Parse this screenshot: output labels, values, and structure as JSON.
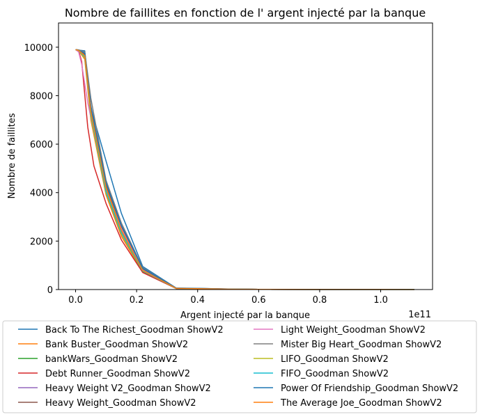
{
  "chart_data": {
    "type": "line",
    "title": "Nombre de faillites en fonction de l' argent injecté par la banque",
    "xlabel": "Argent injecté par la banque",
    "ylabel": "Nombre de faillites",
    "x_offset_label": "1e11",
    "xlim": [
      -0.056,
      1.17
    ],
    "ylim": [
      0,
      11000
    ],
    "x_ticks": [
      0.0,
      0.2,
      0.4,
      0.6,
      0.8,
      1.0
    ],
    "x_tick_labels": [
      "0.0",
      "0.2",
      "0.4",
      "0.6",
      "0.8",
      "1.0"
    ],
    "y_ticks": [
      0,
      2000,
      4000,
      6000,
      8000,
      10000
    ],
    "y_tick_labels": [
      "0",
      "2000",
      "4000",
      "6000",
      "8000",
      "10000"
    ],
    "grid": false,
    "legend_position": "below",
    "series": [
      {
        "name": "Back To The Richest_Goodman ShowV2",
        "color": "#1f77b4",
        "x": [
          0,
          0.01,
          0.03,
          0.05,
          0.1,
          0.15,
          0.22,
          0.33,
          0.4,
          0.5,
          0.6,
          0.8,
          1.0,
          1.11
        ],
        "y": [
          9900,
          9880,
          9850,
          7500,
          5300,
          3150,
          950,
          60,
          50,
          20,
          10,
          5,
          2,
          0
        ]
      },
      {
        "name": "Bank Buster_Goodman ShowV2",
        "color": "#ff7f0e",
        "x": [
          0,
          0.01,
          0.03,
          0.05,
          0.1,
          0.15,
          0.22,
          0.33,
          0.4,
          0.5,
          0.6,
          0.8,
          1.0,
          1.11
        ],
        "y": [
          9900,
          9850,
          9500,
          7000,
          3900,
          2200,
          720,
          40,
          30,
          15,
          8,
          4,
          2,
          0
        ]
      },
      {
        "name": "bankWars_Goodman ShowV2",
        "color": "#2ca02c",
        "x": [
          0,
          0.01,
          0.03,
          0.05,
          0.1,
          0.15,
          0.22,
          0.33,
          0.4,
          0.5,
          0.6,
          0.8,
          1.0,
          1.11
        ],
        "y": [
          9900,
          9860,
          9600,
          7200,
          4000,
          2300,
          750,
          45,
          35,
          15,
          8,
          4,
          2,
          0
        ]
      },
      {
        "name": "Debt Runner_Goodman ShowV2",
        "color": "#d62728",
        "x": [
          0,
          0.01,
          0.02,
          0.04,
          0.06,
          0.1,
          0.15,
          0.22,
          0.33,
          0.4,
          0.5,
          0.6,
          0.8,
          1.0,
          1.11
        ],
        "y": [
          9900,
          9850,
          9400,
          6700,
          5100,
          3550,
          2050,
          700,
          40,
          30,
          15,
          8,
          4,
          2,
          0
        ]
      },
      {
        "name": "Heavy Weight V2_Goodman ShowV2",
        "color": "#9467bd",
        "x": [
          0,
          0.01,
          0.03,
          0.05,
          0.1,
          0.15,
          0.22,
          0.33,
          0.4,
          0.5,
          0.6,
          0.8,
          1.0,
          1.11
        ],
        "y": [
          9900,
          9870,
          9650,
          7300,
          4100,
          2400,
          780,
          45,
          35,
          15,
          8,
          4,
          2,
          0
        ]
      },
      {
        "name": "Heavy Weight_Goodman ShowV2",
        "color": "#8c564b",
        "x": [
          0,
          0.01,
          0.03,
          0.05,
          0.1,
          0.15,
          0.22,
          0.33,
          0.4,
          0.5,
          0.6,
          0.8,
          1.0,
          1.11
        ],
        "y": [
          9900,
          9880,
          9700,
          7400,
          4300,
          2600,
          850,
          50,
          40,
          18,
          9,
          4,
          2,
          0
        ]
      },
      {
        "name": "Light Weight_Goodman ShowV2",
        "color": "#e377c2",
        "x": [
          0,
          0.01,
          0.02,
          0.04,
          0.1,
          0.15,
          0.22,
          0.33,
          0.4,
          0.5,
          0.6,
          0.8,
          1.0,
          1.11
        ],
        "y": [
          9900,
          9800,
          9300,
          7700,
          4150,
          2500,
          800,
          45,
          35,
          15,
          8,
          4,
          2,
          0
        ]
      },
      {
        "name": "Mister Big Heart_Goodman ShowV2",
        "color": "#7f7f7f",
        "x": [
          0,
          0.01,
          0.03,
          0.05,
          0.1,
          0.15,
          0.22,
          0.33,
          0.4,
          0.5,
          0.6,
          0.8,
          1.0,
          1.11
        ],
        "y": [
          9900,
          9890,
          9800,
          7900,
          4500,
          2750,
          900,
          55,
          45,
          20,
          10,
          5,
          2,
          0
        ]
      },
      {
        "name": "LIFO_Goodman ShowV2",
        "color": "#bcbd22",
        "x": [
          0,
          0.01,
          0.03,
          0.05,
          0.1,
          0.15,
          0.22,
          0.33,
          0.4,
          0.5,
          0.6,
          0.8,
          1.0,
          1.11
        ],
        "y": [
          9900,
          9860,
          9550,
          7150,
          4000,
          2300,
          760,
          45,
          35,
          15,
          8,
          4,
          2,
          0
        ]
      },
      {
        "name": "FIFO_Goodman ShowV2",
        "color": "#17becf",
        "x": [
          0,
          0.01,
          0.03,
          0.05,
          0.1,
          0.15,
          0.22,
          0.33,
          0.4,
          0.5,
          0.6,
          0.8,
          1.0,
          1.11
        ],
        "y": [
          9900,
          9870,
          9600,
          7250,
          4050,
          2350,
          770,
          45,
          35,
          15,
          8,
          4,
          2,
          0
        ]
      },
      {
        "name": "Power Of Friendship_Goodman ShowV2",
        "color": "#1f77b4",
        "x": [
          0,
          0.01,
          0.03,
          0.05,
          0.1,
          0.15,
          0.22,
          0.33,
          0.4,
          0.5,
          0.6,
          0.8,
          1.0,
          1.11
        ],
        "y": [
          9900,
          9880,
          9750,
          7600,
          4400,
          2650,
          870,
          55,
          45,
          18,
          9,
          4,
          2,
          0
        ]
      },
      {
        "name": "The Average Joe_Goodman ShowV2",
        "color": "#ff7f0e",
        "x": [
          0,
          0.01,
          0.03,
          0.05,
          0.1,
          0.15,
          0.22,
          0.33,
          0.4,
          0.5,
          0.6,
          0.8,
          1.0,
          1.11
        ],
        "y": [
          9900,
          9870,
          9650,
          7350,
          4200,
          2450,
          790,
          45,
          35,
          15,
          8,
          4,
          2,
          0
        ]
      }
    ]
  }
}
